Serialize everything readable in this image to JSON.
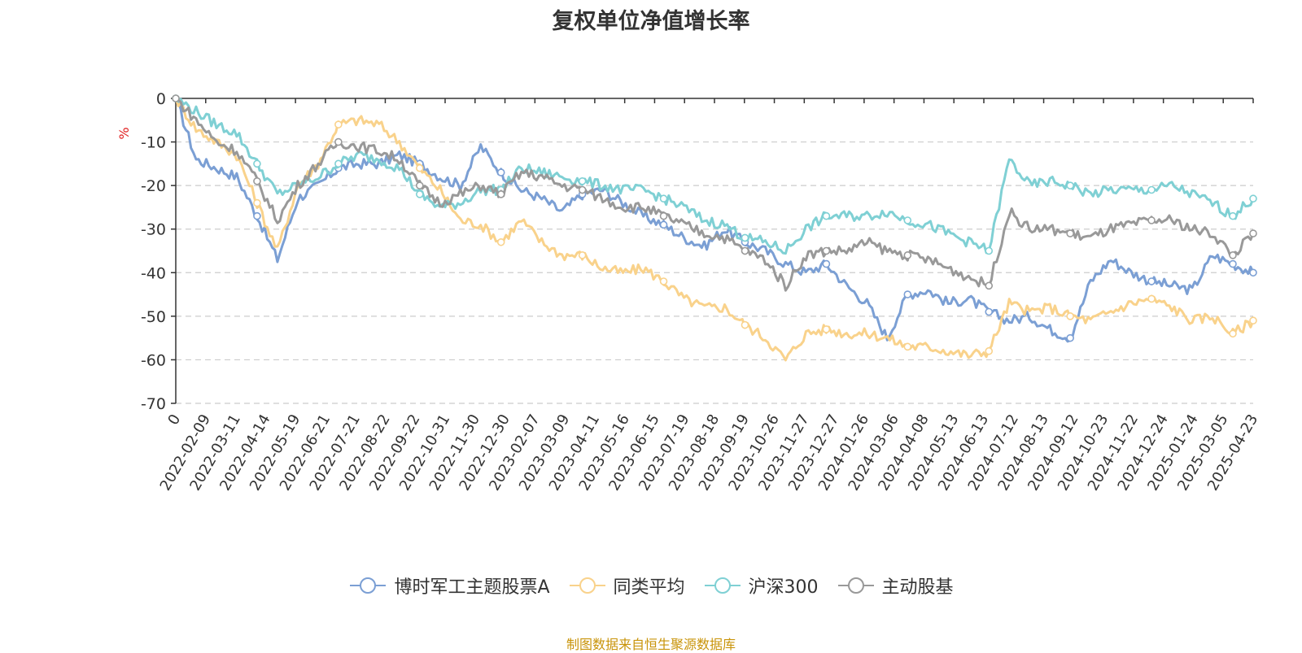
{
  "title": "复权单位净值增长率",
  "source": "制图数据来自恒生聚源数据库",
  "chart_data": {
    "type": "line",
    "title": "复权单位净值增长率",
    "ylabel": "%",
    "ylim": [
      -70,
      0
    ],
    "yticks": [
      0,
      -10,
      -20,
      -30,
      -40,
      -50,
      -60,
      -70
    ],
    "xlabels": [
      "0",
      "2022-02-09",
      "2022-03-11",
      "2022-04-14",
      "2022-05-19",
      "2022-06-21",
      "2022-07-21",
      "2022-08-22",
      "2022-09-22",
      "2022-10-31",
      "2022-11-30",
      "2022-12-30",
      "2023-02-07",
      "2023-03-09",
      "2023-04-11",
      "2023-05-16",
      "2023-06-15",
      "2023-07-19",
      "2023-08-18",
      "2023-09-19",
      "2023-10-26",
      "2023-11-27",
      "2023-12-27",
      "2024-01-26",
      "2024-03-06",
      "2024-04-08",
      "2024-05-13",
      "2024-06-13",
      "2024-07-12",
      "2024-08-13",
      "2024-09-12",
      "2024-10-23",
      "2024-11-22",
      "2024-12-24",
      "2025-01-24",
      "2025-03-05",
      "2025-04-23"
    ],
    "grid": true,
    "legend_position": "bottom",
    "series": [
      {
        "name": "博时军工主题股票A",
        "color": "#7b9fd4",
        "values": [
          0,
          -14,
          -16,
          -18,
          -27,
          -37,
          -23,
          -20,
          -16,
          -15,
          -15,
          -13,
          -15,
          -18,
          -20,
          -11,
          -17,
          -21,
          -23,
          -26,
          -22,
          -21,
          -24,
          -27,
          -29,
          -32,
          -34,
          -30,
          -33,
          -35,
          -38,
          -40,
          -38,
          -43,
          -47,
          -55,
          -45,
          -44,
          -47,
          -46,
          -49,
          -51,
          -50,
          -53,
          -55,
          -42,
          -37,
          -40,
          -42,
          -43,
          -44,
          -36,
          -38,
          -40
        ]
      },
      {
        "name": "同类平均",
        "color": "#f9d28b",
        "values": [
          0,
          -7,
          -10,
          -13,
          -24,
          -35,
          -20,
          -15,
          -6,
          -5,
          -6,
          -10,
          -16,
          -21,
          -28,
          -29,
          -33,
          -28,
          -33,
          -36,
          -36,
          -39,
          -40,
          -39,
          -42,
          -46,
          -48,
          -48,
          -52,
          -55,
          -60,
          -54,
          -53,
          -54,
          -54,
          -55,
          -57,
          -57,
          -58,
          -59,
          -58,
          -47,
          -49,
          -48,
          -50,
          -51,
          -49,
          -47,
          -46,
          -48,
          -51,
          -50,
          -54,
          -51
        ]
      },
      {
        "name": "沪深300",
        "color": "#7fd0d4",
        "values": [
          0,
          -3,
          -6,
          -8,
          -15,
          -22,
          -20,
          -18,
          -15,
          -13,
          -14,
          -16,
          -22,
          -25,
          -24,
          -21,
          -21,
          -16,
          -17,
          -18,
          -19,
          -20,
          -21,
          -21,
          -23,
          -25,
          -28,
          -29,
          -32,
          -33,
          -35,
          -30,
          -27,
          -27,
          -27,
          -26,
          -28,
          -29,
          -31,
          -33,
          -35,
          -14,
          -20,
          -19,
          -20,
          -22,
          -21,
          -21,
          -21,
          -20,
          -22,
          -24,
          -27,
          -23
        ]
      },
      {
        "name": "主动股基",
        "color": "#999999",
        "values": [
          0,
          -5,
          -10,
          -12,
          -19,
          -28,
          -20,
          -15,
          -10,
          -11,
          -12,
          -14,
          -20,
          -24,
          -22,
          -20,
          -22,
          -17,
          -18,
          -20,
          -21,
          -23,
          -25,
          -25,
          -27,
          -29,
          -31,
          -32,
          -35,
          -37,
          -43,
          -36,
          -35,
          -35,
          -33,
          -35,
          -36,
          -37,
          -39,
          -41,
          -43,
          -26,
          -30,
          -30,
          -31,
          -32,
          -30,
          -29,
          -28,
          -28,
          -30,
          -31,
          -36,
          -31
        ]
      }
    ]
  }
}
